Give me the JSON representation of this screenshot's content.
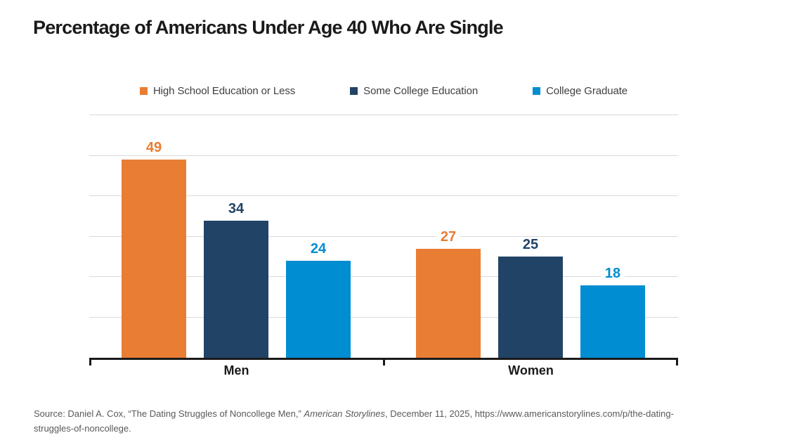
{
  "header": {
    "title": "Percentage of Americans Under Age 40 Who Are Single"
  },
  "chart_data": {
    "type": "bar",
    "title": "Percentage of Americans Under Age 40 Who Are Single",
    "categories": [
      "Men",
      "Women"
    ],
    "series": [
      {
        "name": "High School Education or Less",
        "color": "#E87D33",
        "values": [
          49,
          27
        ]
      },
      {
        "name": "Some College Education",
        "color": "#214366",
        "values": [
          34,
          25
        ]
      },
      {
        "name": "College Graduate",
        "color": "#008DD1",
        "values": [
          24,
          18
        ]
      }
    ],
    "xlabel": "",
    "ylabel": "",
    "ylim": [
      0,
      60
    ],
    "grid_step": 10,
    "grid": true,
    "legend_position": "top",
    "value_labels": true
  },
  "source": {
    "prefix": "Source: Daniel A. Cox, “The Dating Struggles of Noncollege Men,” ",
    "italic": "American Storylines",
    "suffix": ", December 11, 2025, https://www.americanstorylines.com/p/the-dating-struggles-of-noncollege."
  }
}
